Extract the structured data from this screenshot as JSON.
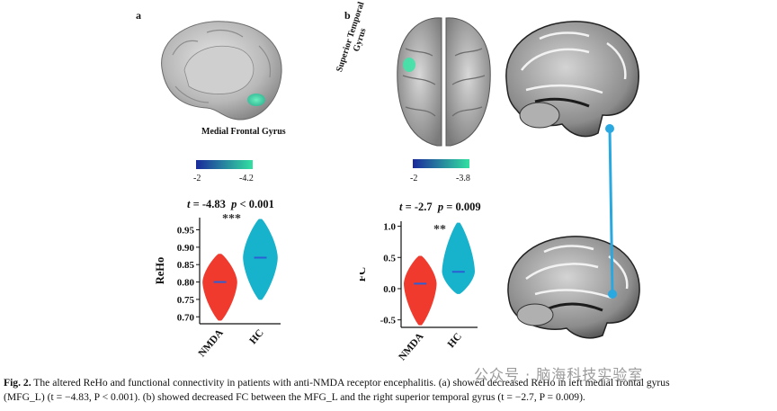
{
  "panel_a": {
    "letter": "a",
    "region_label": "Medial Frontal Gyrus",
    "colorbar": {
      "min": "-2",
      "max": "-4.2",
      "color_low": "#1a2a9c",
      "color_high": "#33e0a0"
    },
    "stat_t": "t",
    "stat_t_value": " = -4.83",
    "stat_p": "p",
    "stat_p_value": " < 0.001",
    "significance": "***",
    "chart_data": {
      "type": "violin",
      "ylabel": "ReHo",
      "categories": [
        "NMDA",
        "HC"
      ],
      "yticks": [
        0.7,
        0.75,
        0.8,
        0.85,
        0.9,
        0.95
      ],
      "ytick_labels": [
        "0.70",
        "0.75",
        "0.80",
        "0.85",
        "0.90",
        "0.95"
      ],
      "ylim": [
        0.68,
        0.985
      ],
      "series": [
        {
          "group": "NMDA",
          "median": 0.8,
          "min": 0.69,
          "max": 0.88,
          "color": "#f03a2e"
        },
        {
          "group": "HC",
          "median": 0.87,
          "min": 0.75,
          "max": 0.98,
          "color": "#17b2cc"
        }
      ]
    }
  },
  "panel_b": {
    "letter": "b",
    "region_label_line1": "Superior Temporal",
    "region_label_line2": "Gyrus",
    "colorbar": {
      "min": "-2",
      "max": "-3.8",
      "color_low": "#1a2a9c",
      "color_high": "#33e0a0"
    },
    "stat_t": "t",
    "stat_t_value": " = -2.7",
    "stat_p": "p",
    "stat_p_value": " = 0.009",
    "significance": "**",
    "chart_data": {
      "type": "violin",
      "ylabel": "FC",
      "categories": [
        "NMDA",
        "HC"
      ],
      "yticks": [
        -0.5,
        0.0,
        0.5,
        1.0
      ],
      "ytick_labels": [
        "-0.5",
        "0.0",
        "0.5",
        "1.0"
      ],
      "ylim": [
        -0.62,
        1.08
      ],
      "series": [
        {
          "group": "NMDA",
          "median": 0.08,
          "min": -0.58,
          "max": 0.52,
          "color": "#f03a2e"
        },
        {
          "group": "HC",
          "median": 0.27,
          "min": -0.08,
          "max": 1.05,
          "color": "#17b2cc"
        }
      ]
    }
  },
  "connection_color": "#2aa8e0",
  "caption": {
    "label": "Fig. 2.",
    "line1": " The altered ReHo and functional connectivity in patients with anti-NMDA receptor encephalitis. (a) showed decreased ReHo in left medial frontal gyrus",
    "line2": "(MFG_L) (t = −4.83, P < 0.001). (b) showed decreased FC between the MFG_L and the right superior temporal gyrus (t = −2.7, P = 0.009)."
  },
  "watermark": "公众号 · 脑海科技实验室"
}
